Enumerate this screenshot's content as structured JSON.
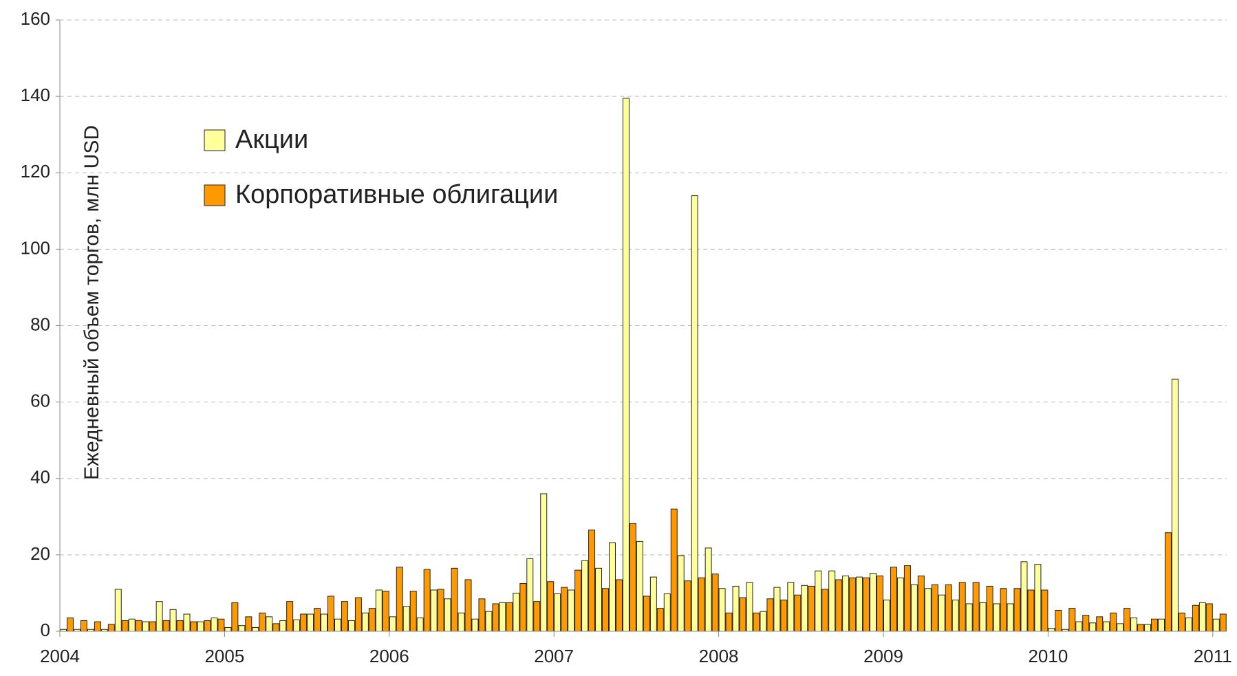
{
  "chart_data": {
    "type": "bar",
    "ylabel": "Ежедневный объем торгов, млн USD",
    "categories": [
      "2004",
      null,
      null,
      null,
      null,
      null,
      null,
      null,
      null,
      null,
      null,
      null,
      "2005",
      null,
      null,
      null,
      null,
      null,
      null,
      null,
      null,
      null,
      null,
      null,
      "2006",
      null,
      null,
      null,
      null,
      null,
      null,
      null,
      null,
      null,
      null,
      null,
      "2007",
      null,
      null,
      null,
      null,
      null,
      null,
      null,
      null,
      null,
      null,
      null,
      "2008",
      null,
      null,
      null,
      null,
      null,
      null,
      null,
      null,
      null,
      null,
      null,
      "2009",
      null,
      null,
      null,
      null,
      null,
      null,
      null,
      null,
      null,
      null,
      null,
      "2010",
      null,
      null,
      null,
      null,
      null,
      null,
      null,
      null,
      null,
      null,
      null,
      "2011"
    ],
    "series": [
      {
        "name": "Акции",
        "color": "#ffff9c",
        "values": [
          0.5,
          0.5,
          0.5,
          0.5,
          11,
          3.2,
          2.5,
          7.8,
          5.7,
          4.5,
          2.5,
          3.5,
          1.0,
          1.5,
          1.0,
          3.8,
          2.8,
          3.0,
          4.5,
          4.5,
          3.2,
          2.8,
          4.8,
          10.8,
          3.8,
          6.5,
          3.5,
          10.8,
          8.5,
          4.8,
          3.2,
          5.2,
          7.5,
          10.0,
          19.0,
          36.0,
          9.8,
          10.8,
          18.5,
          16.5,
          23.2,
          139.5,
          23.5,
          14.2,
          9.8,
          19.8,
          114.0,
          21.8,
          11.2,
          11.8,
          12.8,
          5.2,
          11.5,
          12.8,
          12.0,
          15.8,
          15.8,
          14.5,
          14.2,
          15.2,
          8.2,
          14.0,
          12.2,
          11.2,
          9.5,
          8.2,
          7.2,
          7.5,
          7.2,
          7.2,
          18.2,
          17.5,
          0.8,
          0.5,
          2.5,
          2.2,
          2.5,
          2.0,
          3.5,
          1.8,
          3.2,
          66.0,
          3.5,
          7.5,
          3.2
        ]
      },
      {
        "name": "Корпоративные облигации",
        "color": "#ff9900",
        "values": [
          3.5,
          2.8,
          2.5,
          1.8,
          2.8,
          2.8,
          2.5,
          2.8,
          2.8,
          2.5,
          2.8,
          3.2,
          7.5,
          3.8,
          4.8,
          2.0,
          7.8,
          4.5,
          6.0,
          9.2,
          7.8,
          8.8,
          6.0,
          10.5,
          16.8,
          10.5,
          16.2,
          11.0,
          16.5,
          13.5,
          8.5,
          7.2,
          7.5,
          12.5,
          7.8,
          13.0,
          11.5,
          16.0,
          26.5,
          11.2,
          13.5,
          28.2,
          9.2,
          6.0,
          32.0,
          13.2,
          14.0,
          15.0,
          4.8,
          8.8,
          4.8,
          8.5,
          8.2,
          9.5,
          11.8,
          11.0,
          13.5,
          14.0,
          14.0,
          14.5,
          16.8,
          17.2,
          14.5,
          12.2,
          12.2,
          12.8,
          12.8,
          11.8,
          11.2,
          11.2,
          10.8,
          10.8,
          5.5,
          6.0,
          4.2,
          3.8,
          4.8,
          6.0,
          1.8,
          3.2,
          25.8,
          4.8,
          6.8,
          7.2,
          4.5
        ]
      }
    ],
    "ylim": [
      0,
      160
    ],
    "yticks": [
      0,
      20,
      40,
      60,
      80,
      100,
      120,
      140,
      160
    ],
    "grid": true
  }
}
